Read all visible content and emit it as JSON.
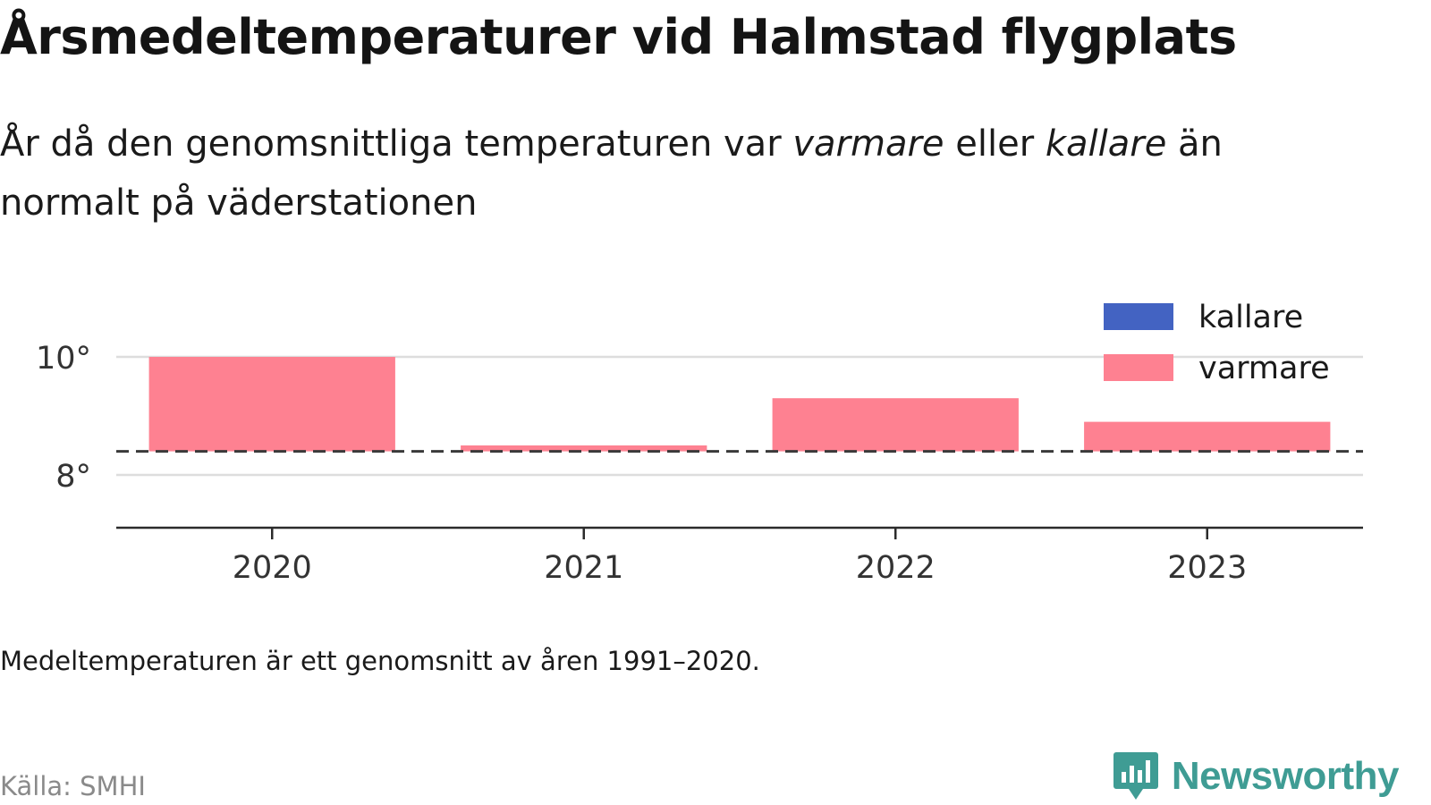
{
  "title": "Årsmedeltemperaturer vid Halmstad flygplats",
  "subtitle": {
    "part1": "År då den genomsnittliga temperaturen var ",
    "em1": "varmare",
    "part2": " eller ",
    "em2": "kallare",
    "part3": " än normalt på väderstationen"
  },
  "chart_data": {
    "type": "bar",
    "categories": [
      "2020",
      "2021",
      "2022",
      "2023"
    ],
    "values": [
      10.0,
      8.5,
      9.3,
      8.9
    ],
    "baseline": 8.4,
    "baseline_style": "dashed",
    "ylim": [
      7.1,
      10.4
    ],
    "yticks": [
      8,
      10
    ],
    "ytick_labels": [
      "8°",
      "10°"
    ],
    "grid": true,
    "legend_position": "top-right",
    "legend": [
      {
        "label": "kallare",
        "color": "#4363c2"
      },
      {
        "label": "varmare",
        "color": "#fe8191"
      }
    ]
  },
  "note": "Medeltemperaturen är ett genomsnitt av åren 1991–2020.",
  "source": "Källa: SMHI",
  "brand": {
    "name": "Newsworthy",
    "icon": "newsworthy-logo-icon",
    "color": "#3f9c94"
  }
}
